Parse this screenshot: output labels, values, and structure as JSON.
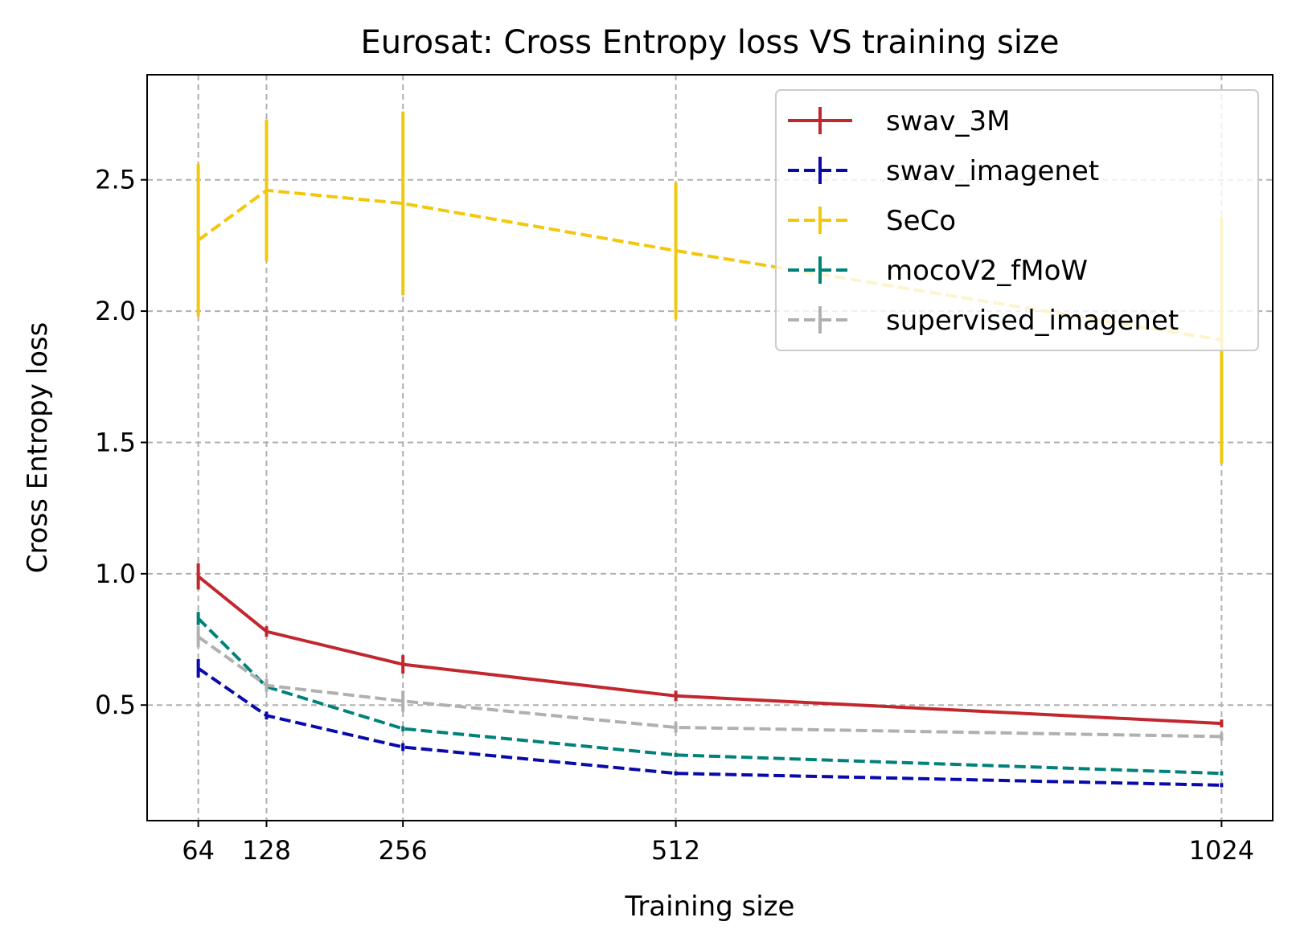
{
  "chart_data": {
    "type": "line",
    "title": "Eurosat: Cross Entropy loss VS training size",
    "xlabel": "Training size",
    "ylabel": "Cross Entropy loss",
    "x": [
      64,
      128,
      256,
      512,
      1024
    ],
    "x_tick_labels": [
      "64",
      "128",
      "256",
      "512",
      "1024"
    ],
    "xlim": [
      16,
      1072
    ],
    "ylim": [
      0.06,
      2.9
    ],
    "y_ticks": [
      0.5,
      1.0,
      1.5,
      2.0,
      2.5
    ],
    "y_tick_labels": [
      "0.5",
      "1.0",
      "1.5",
      "2.0",
      "2.5"
    ],
    "grid": true,
    "legend_position": "top-right",
    "series": [
      {
        "name": "swav_3M",
        "color": "#c1272d",
        "dash": "solid",
        "values": [
          0.99,
          0.78,
          0.655,
          0.535,
          0.43
        ],
        "errors": [
          0.05,
          0.02,
          0.035,
          0.02,
          0.015
        ]
      },
      {
        "name": "swav_imagenet",
        "color": "#0a0aaa",
        "dash": "dashed",
        "values": [
          0.64,
          0.46,
          0.34,
          0.24,
          0.195
        ],
        "errors": [
          0.035,
          0.015,
          0.015,
          0.008,
          0.008
        ]
      },
      {
        "name": "SeCo",
        "color": "#f2c80f",
        "dash": "dashed",
        "values": [
          2.27,
          2.46,
          2.41,
          2.23,
          1.89
        ],
        "errors": [
          0.29,
          0.27,
          0.35,
          0.26,
          0.47
        ]
      },
      {
        "name": "mocoV2_fMoW",
        "color": "#00827a",
        "dash": "dashed",
        "values": [
          0.83,
          0.57,
          0.41,
          0.31,
          0.24
        ],
        "errors": [
          0.025,
          0.015,
          0.01,
          0.008,
          0.008
        ]
      },
      {
        "name": "supervised_imagenet",
        "color": "#b0b0b0",
        "dash": "dashed",
        "values": [
          0.76,
          0.575,
          0.515,
          0.415,
          0.38
        ],
        "errors": [
          0.04,
          0.025,
          0.04,
          0.02,
          0.015
        ]
      }
    ]
  }
}
